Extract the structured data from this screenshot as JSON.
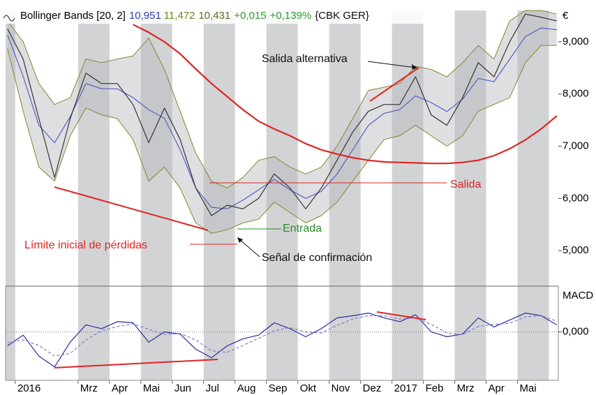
{
  "chart_data": {
    "type": "line",
    "title": "Bollinger Bands [20, 2]",
    "readouts": [
      {
        "label": "10,951",
        "color": "#2f3fa8"
      },
      {
        "label": "11,472",
        "color": "#6a8a20"
      },
      {
        "label": "10,431",
        "color": "#6a6a20"
      },
      {
        "label": "+0,015",
        "color": "#2a9a2a"
      },
      {
        "label": "+0,139%",
        "color": "#2a9a2a"
      },
      {
        "label": "{CBK GER}",
        "color": "#111111"
      }
    ],
    "y_unit": "€",
    "y2_label": "MACD",
    "x": [
      -0.25,
      0.25,
      0.75,
      1.25,
      1.75,
      2.25,
      2.75,
      3.25,
      3.75,
      4.25,
      4.75,
      5.25,
      5.75,
      6.25,
      6.75,
      7.25,
      7.75,
      8.25,
      8.75,
      9.25,
      9.75,
      10.25,
      10.75,
      11.25,
      11.75,
      12.25,
      12.75,
      13.25,
      13.75,
      14.25,
      14.75,
      15.25,
      15.75,
      16.25,
      16.75,
      17.25
    ],
    "xlim": [
      -0.31,
      17.3
    ],
    "xticks": [
      {
        "value": 0,
        "label": "2016"
      },
      {
        "value": 2,
        "label": "Mrz"
      },
      {
        "value": 3,
        "label": "Apr"
      },
      {
        "value": 4,
        "label": "Mai"
      },
      {
        "value": 5,
        "label": "Jun"
      },
      {
        "value": 6,
        "label": "Jul"
      },
      {
        "value": 7,
        "label": "Aug"
      },
      {
        "value": 8,
        "label": "Sep"
      },
      {
        "value": 9,
        "label": "Okt"
      },
      {
        "value": 10,
        "label": "Nov"
      },
      {
        "value": 11,
        "label": "Dez"
      },
      {
        "value": 12,
        "label": "2017"
      },
      {
        "value": 13,
        "label": "Feb"
      },
      {
        "value": 14,
        "label": "Mrz"
      },
      {
        "value": 15,
        "label": "Apr"
      },
      {
        "value": 16,
        "label": "Mai"
      }
    ],
    "ylim": [
      4320,
      9600
    ],
    "yticks": [
      {
        "value": 5000,
        "label": "5,000"
      },
      {
        "value": 6000,
        "label": "6,000"
      },
      {
        "value": 7000,
        "label": "7,000"
      },
      {
        "value": 8000,
        "label": "8,000"
      },
      {
        "value": 9000,
        "label": "9,000"
      }
    ],
    "y2lim": [
      -0.9,
      0.85
    ],
    "y2ticks": [
      {
        "value": 0,
        "label": "0,000"
      }
    ],
    "series": [
      {
        "name": "Upper band",
        "color": "#7d8a2a",
        "role": "band_upper",
        "values": [
          9400,
          9000,
          8200,
          7800,
          7930,
          8670,
          8600,
          8670,
          8730,
          9070,
          8470,
          7670,
          6870,
          6330,
          6200,
          6400,
          6730,
          6800,
          6600,
          6470,
          6600,
          7000,
          7530,
          8070,
          8130,
          8200,
          8530,
          8470,
          8330,
          8600,
          8930,
          8670,
          9400,
          9600,
          9600,
          9530
        ]
      },
      {
        "name": "Lower band",
        "color": "#7d8a2a",
        "role": "band_lower",
        "values": [
          8870,
          7670,
          6600,
          6330,
          7200,
          7730,
          7600,
          7530,
          7130,
          6330,
          6600,
          6200,
          5530,
          5330,
          5400,
          5530,
          5600,
          5930,
          5730,
          5530,
          5670,
          5930,
          6330,
          6730,
          7130,
          7200,
          7400,
          7200,
          7000,
          7200,
          7670,
          7800,
          7930,
          8600,
          8930,
          8930
        ]
      },
      {
        "name": "Middle band",
        "color": "#5060c8",
        "values": [
          9135,
          8335,
          7400,
          7065,
          7565,
          8200,
          8100,
          8100,
          7930,
          7700,
          7535,
          6935,
          6200,
          5830,
          5800,
          5965,
          6165,
          6365,
          6165,
          6000,
          6135,
          6465,
          6930,
          7400,
          7630,
          7700,
          7965,
          7835,
          7665,
          7900,
          8300,
          8235,
          8665,
          9100,
          9265,
          9230
        ]
      },
      {
        "name": "Close",
        "color": "#333333",
        "values": [
          9250,
          8670,
          7530,
          6400,
          7530,
          8400,
          8200,
          8200,
          7800,
          7070,
          7730,
          7130,
          6200,
          5670,
          5870,
          5800,
          6000,
          6470,
          6200,
          5800,
          6200,
          6730,
          7270,
          7670,
          7800,
          7800,
          8330,
          7600,
          7400,
          7930,
          8600,
          8330,
          9000,
          9530,
          9470,
          9400
        ]
      },
      {
        "name": "SMA 200",
        "color": "#e02424",
        "values": [
          null,
          null,
          null,
          null,
          null,
          null,
          null,
          null,
          9330,
          9180,
          9000,
          8770,
          8480,
          8200,
          7950,
          7700,
          7480,
          7330,
          7200,
          7050,
          6930,
          6850,
          6780,
          6730,
          6700,
          6690,
          6680,
          6670,
          6670,
          6690,
          6730,
          6820,
          6950,
          7120,
          7330,
          7580
        ]
      },
      {
        "name": "MACD",
        "color": "#2c2ca0",
        "axis": "y2",
        "values": [
          -0.26,
          -0.06,
          -0.45,
          -0.65,
          -0.19,
          0.13,
          0.06,
          0.19,
          0.17,
          -0.19,
          0,
          -0.04,
          -0.32,
          -0.48,
          -0.26,
          -0.13,
          -0.06,
          0.17,
          0.06,
          -0.09,
          0.06,
          0.26,
          0.3,
          0.35,
          0.26,
          0.19,
          0.32,
          0,
          -0.09,
          -0.04,
          0.26,
          0.09,
          0.22,
          0.35,
          0.3,
          0.13
        ]
      },
      {
        "name": "Signal",
        "color": "#7a7ac8",
        "axis": "y2",
        "dashed": true,
        "values": [
          -0.2,
          -0.15,
          -0.25,
          -0.45,
          -0.4,
          -0.15,
          0.02,
          0.1,
          0.15,
          0.05,
          -0.05,
          -0.03,
          -0.15,
          -0.35,
          -0.38,
          -0.25,
          -0.12,
          0.02,
          0.08,
          0,
          -0.02,
          0.12,
          0.24,
          0.3,
          0.3,
          0.24,
          0.26,
          0.14,
          -0.02,
          -0.05,
          0.1,
          0.14,
          0.16,
          0.28,
          0.3,
          0.2
        ]
      }
    ],
    "annotations": [
      {
        "text": "Salida alternativa",
        "color": "#111111"
      },
      {
        "text": "Salida",
        "color": "#e02424"
      },
      {
        "text": "Entrada",
        "color": "#2a8a2a"
      },
      {
        "text": "Límite inicial de pérdidas",
        "color": "#e02424"
      },
      {
        "text": "Señal de confirmación",
        "color": "#111111"
      }
    ]
  }
}
